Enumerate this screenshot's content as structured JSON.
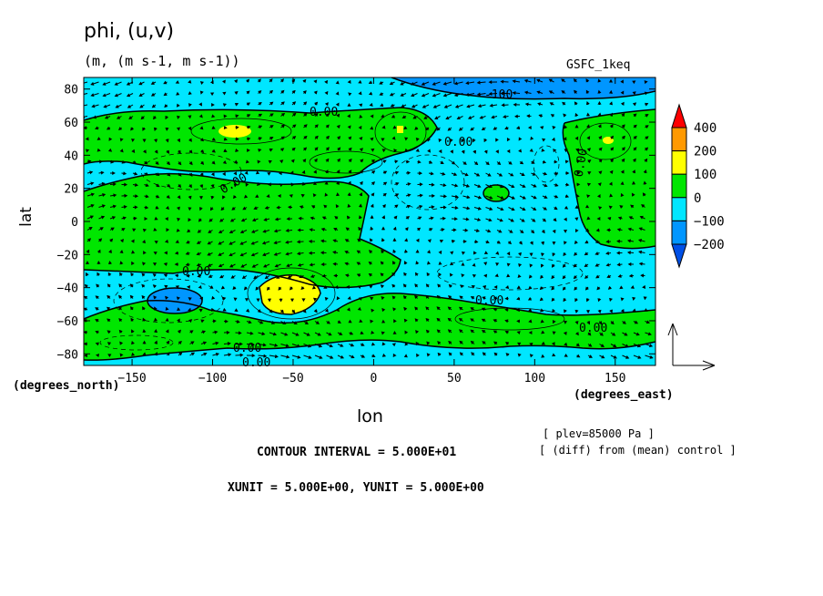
{
  "chart_data": {
    "type": "heatmap",
    "title": "phi, (u,v)",
    "units_label": "(m, (m s-1, m s-1))",
    "experiment": "GSFC_1keq",
    "xlabel": "lon",
    "ylabel": "lat",
    "xunit_label": "(degrees_east)",
    "yunit_label": "(degrees_north)",
    "xlim": [
      -180,
      175
    ],
    "ylim": [
      -87,
      87
    ],
    "xticks": [
      -150,
      -100,
      -50,
      0,
      50,
      100,
      150
    ],
    "yticks": [
      -80,
      -60,
      -40,
      -20,
      0,
      20,
      40,
      60,
      80
    ],
    "colorbar": {
      "levels": [
        "400",
        "200",
        "100",
        "0",
        "−100",
        "−200"
      ],
      "colors": [
        "#ff0000",
        "#ff9900",
        "#ffff00",
        "#00e600",
        "#00e6ff",
        "#0096ff",
        "#0050e6"
      ]
    },
    "contour_label": "0.00",
    "contour_label_neg": "-100",
    "annotations": {
      "plev": "[ plev=85000 Pa ]",
      "diff": "[ (diff) from (mean) control ]",
      "contour_interval": "CONTOUR INTERVAL = 5.000E+01",
      "vector_unit": "XUNIT = 5.000E+00, YUNIT = 5.000E+00"
    }
  }
}
